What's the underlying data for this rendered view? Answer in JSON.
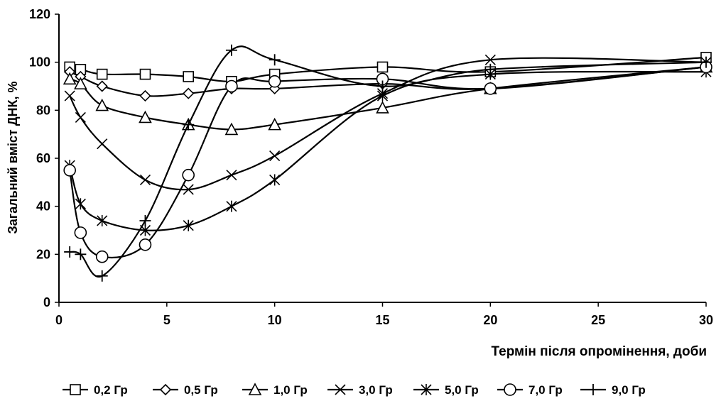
{
  "chart_data": {
    "type": "line",
    "title": "",
    "xlabel": "Термін після опромінення, доби",
    "ylabel": "Загальний вміст ДНК, %",
    "xlim": [
      0,
      30
    ],
    "ylim": [
      0,
      120
    ],
    "xticks": [
      "0",
      "5",
      "10",
      "15",
      "20",
      "25",
      "30"
    ],
    "yticks": [
      "0",
      "20",
      "40",
      "60",
      "80",
      "100",
      "120"
    ],
    "grid": false,
    "legend": "bottom",
    "line_color": "#000000",
    "series": [
      {
        "name": "0,2 Гр",
        "marker": "square",
        "x": [
          0.5,
          1,
          2,
          4,
          6,
          8,
          10,
          15,
          20,
          30
        ],
        "y": [
          98,
          97,
          95,
          95,
          94,
          92,
          95,
          98,
          96,
          102
        ]
      },
      {
        "name": "0,5 Гр",
        "marker": "diamond",
        "x": [
          0.5,
          1,
          2,
          4,
          6,
          8,
          10,
          15,
          20,
          30
        ],
        "y": [
          96,
          94,
          90,
          86,
          87,
          89,
          89,
          91,
          89,
          98
        ]
      },
      {
        "name": "1,0 Гр",
        "marker": "triangle",
        "x": [
          0.5,
          1,
          2,
          4,
          6,
          8,
          10,
          15,
          20,
          30
        ],
        "y": [
          93,
          91,
          82,
          77,
          74,
          72,
          74,
          81,
          89,
          98
        ]
      },
      {
        "name": "3,0 Гр",
        "marker": "x",
        "x": [
          0.5,
          1,
          2,
          4,
          6,
          8,
          10,
          15,
          20,
          30
        ],
        "y": [
          86,
          77,
          66,
          51,
          47,
          53,
          61,
          87,
          101,
          100
        ]
      },
      {
        "name": "5,0 Гр",
        "marker": "asterisk",
        "x": [
          0.5,
          1,
          2,
          4,
          6,
          8,
          10,
          15,
          20,
          30
        ],
        "y": [
          57,
          41,
          34,
          30,
          32,
          40,
          51,
          86,
          95,
          96
        ]
      },
      {
        "name": "7,0 Гр",
        "marker": "circle",
        "x": [
          0.5,
          1,
          2,
          4,
          6,
          8,
          10,
          15,
          20,
          30
        ],
        "y": [
          55,
          29,
          19,
          24,
          53,
          90,
          92,
          93,
          89,
          98
        ]
      },
      {
        "name": "9,0 Гр",
        "marker": "plus",
        "x": [
          0.5,
          1,
          2,
          4,
          6,
          8,
          10,
          15,
          20,
          30
        ],
        "y": [
          21,
          20,
          11,
          34,
          74,
          105,
          101,
          90,
          97,
          100
        ]
      }
    ]
  }
}
